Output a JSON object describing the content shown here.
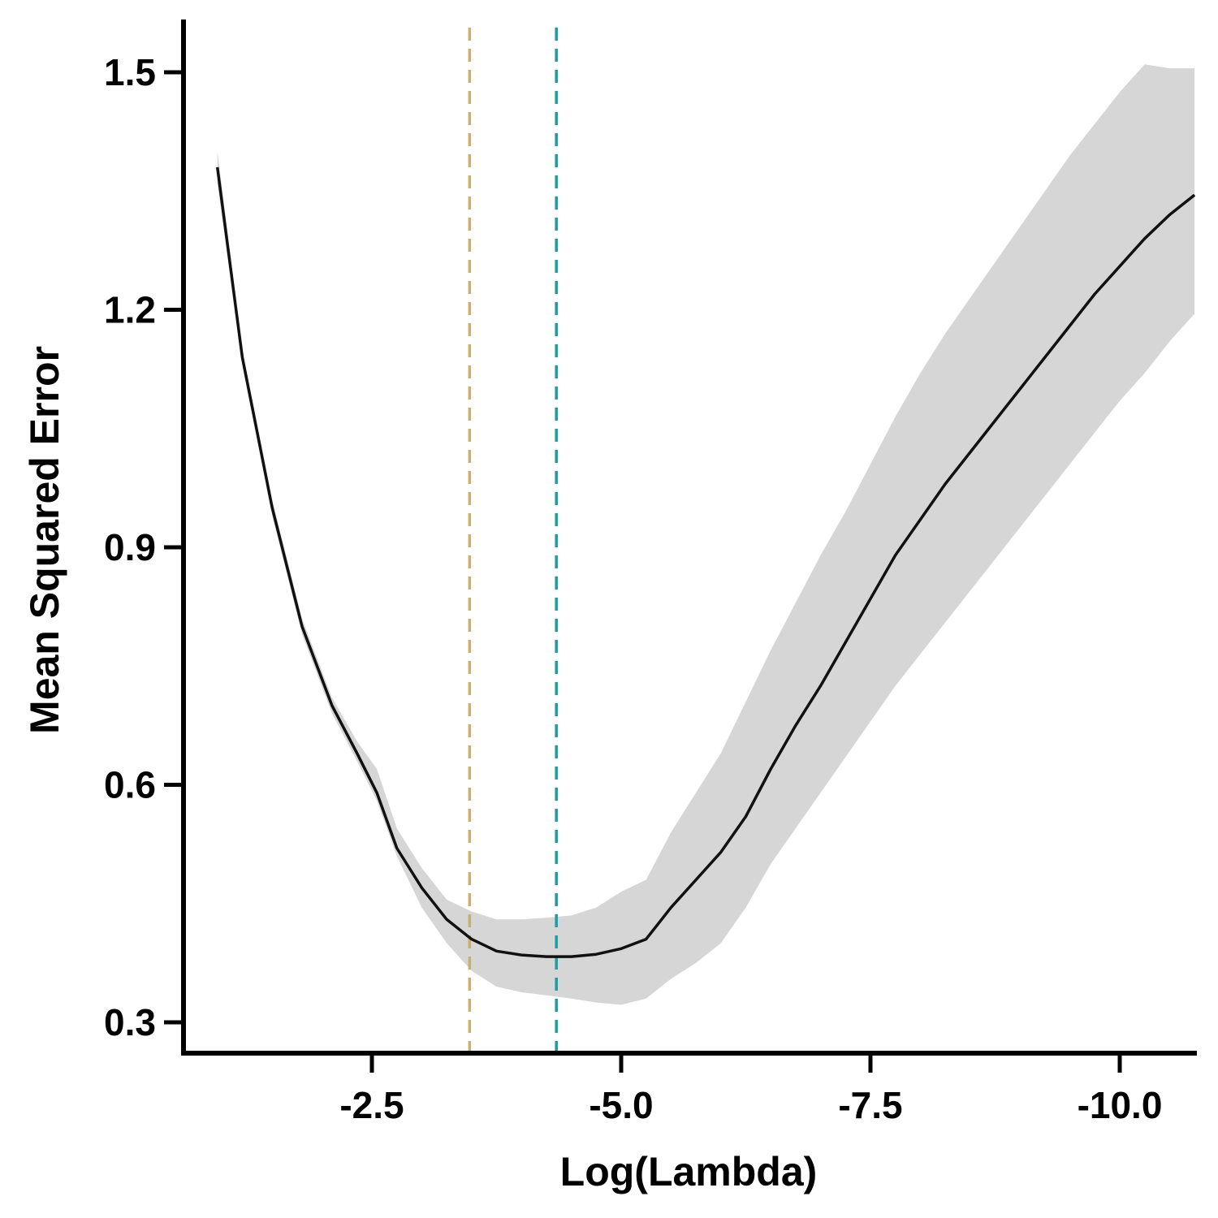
{
  "chart_data": {
    "type": "line",
    "title": "",
    "xlabel": "Log(Lambda)",
    "ylabel": "Mean Squared Error",
    "x_reversed": true,
    "xlim": [
      -1.6,
      -11.8
    ],
    "ylim": [
      0.27,
      1.57
    ],
    "x_ticks": [
      -2.5,
      -5.0,
      -7.5,
      -10.0
    ],
    "x_tick_labels": [
      "-2.5",
      "-5.0",
      "-7.5",
      "-10.0"
    ],
    "y_ticks": [
      0.3,
      0.6,
      0.9,
      1.2,
      1.5
    ],
    "y_tick_labels": [
      "0.3",
      "0.6",
      "0.9",
      "1.2",
      "1.5"
    ],
    "grid": false,
    "legend": "none",
    "series": [
      {
        "role": "mean",
        "color": "#111111",
        "points": [
          [
            -0.95,
            1.38
          ],
          [
            -1.2,
            1.14
          ],
          [
            -1.5,
            0.95
          ],
          [
            -1.8,
            0.8
          ],
          [
            -2.1,
            0.7
          ],
          [
            -2.35,
            0.64
          ],
          [
            -2.55,
            0.59
          ],
          [
            -2.75,
            0.52
          ],
          [
            -3.0,
            0.47
          ],
          [
            -3.25,
            0.43
          ],
          [
            -3.5,
            0.405
          ],
          [
            -3.75,
            0.39
          ],
          [
            -4.0,
            0.385
          ],
          [
            -4.25,
            0.383
          ],
          [
            -4.5,
            0.383
          ],
          [
            -4.75,
            0.386
          ],
          [
            -5.0,
            0.393
          ],
          [
            -5.25,
            0.405
          ],
          [
            -5.5,
            0.445
          ],
          [
            -5.75,
            0.48
          ],
          [
            -6.0,
            0.515
          ],
          [
            -6.25,
            0.56
          ],
          [
            -6.5,
            0.62
          ],
          [
            -6.75,
            0.675
          ],
          [
            -7.0,
            0.725
          ],
          [
            -7.25,
            0.78
          ],
          [
            -7.5,
            0.835
          ],
          [
            -7.75,
            0.89
          ],
          [
            -8.0,
            0.935
          ],
          [
            -8.25,
            0.98
          ],
          [
            -8.5,
            1.02
          ],
          [
            -8.75,
            1.06
          ],
          [
            -9.0,
            1.1
          ],
          [
            -9.25,
            1.14
          ],
          [
            -9.5,
            1.18
          ],
          [
            -9.75,
            1.22
          ],
          [
            -10.0,
            1.255
          ],
          [
            -10.25,
            1.29
          ],
          [
            -10.5,
            1.32
          ],
          [
            -10.75,
            1.345
          ]
        ]
      },
      {
        "role": "band",
        "color": "#d6d6d6",
        "upper": [
          [
            -0.95,
            1.4
          ],
          [
            -1.2,
            1.15
          ],
          [
            -1.5,
            0.96
          ],
          [
            -1.8,
            0.81
          ],
          [
            -2.1,
            0.71
          ],
          [
            -2.35,
            0.655
          ],
          [
            -2.55,
            0.62
          ],
          [
            -2.75,
            0.545
          ],
          [
            -3.0,
            0.495
          ],
          [
            -3.25,
            0.455
          ],
          [
            -3.5,
            0.44
          ],
          [
            -3.75,
            0.43
          ],
          [
            -4.0,
            0.43
          ],
          [
            -4.25,
            0.432
          ],
          [
            -4.5,
            0.435
          ],
          [
            -4.75,
            0.445
          ],
          [
            -5.0,
            0.465
          ],
          [
            -5.25,
            0.48
          ],
          [
            -5.5,
            0.54
          ],
          [
            -5.75,
            0.59
          ],
          [
            -6.0,
            0.64
          ],
          [
            -6.25,
            0.705
          ],
          [
            -6.5,
            0.77
          ],
          [
            -6.75,
            0.83
          ],
          [
            -7.0,
            0.89
          ],
          [
            -7.25,
            0.945
          ],
          [
            -7.5,
            1.005
          ],
          [
            -7.75,
            1.065
          ],
          [
            -8.0,
            1.12
          ],
          [
            -8.25,
            1.17
          ],
          [
            -8.5,
            1.215
          ],
          [
            -8.75,
            1.26
          ],
          [
            -9.0,
            1.305
          ],
          [
            -9.25,
            1.35
          ],
          [
            -9.5,
            1.395
          ],
          [
            -9.75,
            1.435
          ],
          [
            -10.0,
            1.475
          ],
          [
            -10.25,
            1.51
          ],
          [
            -10.5,
            1.505
          ],
          [
            -10.75,
            1.505
          ]
        ],
        "lower": [
          [
            -0.95,
            1.36
          ],
          [
            -1.2,
            1.13
          ],
          [
            -1.5,
            0.94
          ],
          [
            -1.8,
            0.79
          ],
          [
            -2.1,
            0.69
          ],
          [
            -2.35,
            0.63
          ],
          [
            -2.55,
            0.58
          ],
          [
            -2.75,
            0.51
          ],
          [
            -3.0,
            0.445
          ],
          [
            -3.25,
            0.4
          ],
          [
            -3.5,
            0.365
          ],
          [
            -3.75,
            0.345
          ],
          [
            -4.0,
            0.338
          ],
          [
            -4.25,
            0.334
          ],
          [
            -4.5,
            0.33
          ],
          [
            -4.75,
            0.325
          ],
          [
            -5.0,
            0.322
          ],
          [
            -5.25,
            0.33
          ],
          [
            -5.5,
            0.355
          ],
          [
            -5.75,
            0.375
          ],
          [
            -6.0,
            0.4
          ],
          [
            -6.25,
            0.445
          ],
          [
            -6.5,
            0.5
          ],
          [
            -6.75,
            0.545
          ],
          [
            -7.0,
            0.59
          ],
          [
            -7.25,
            0.635
          ],
          [
            -7.5,
            0.68
          ],
          [
            -7.75,
            0.725
          ],
          [
            -8.0,
            0.765
          ],
          [
            -8.25,
            0.805
          ],
          [
            -8.5,
            0.845
          ],
          [
            -8.75,
            0.885
          ],
          [
            -9.0,
            0.925
          ],
          [
            -9.25,
            0.965
          ],
          [
            -9.5,
            1.005
          ],
          [
            -9.75,
            1.045
          ],
          [
            -10.0,
            1.085
          ],
          [
            -10.25,
            1.12
          ],
          [
            -10.5,
            1.16
          ],
          [
            -10.75,
            1.195
          ]
        ]
      }
    ],
    "reference_lines": [
      {
        "axis": "x",
        "value": -3.48,
        "color": "#c8b070",
        "style": "dashed"
      },
      {
        "axis": "x",
        "value": -4.35,
        "color": "#1a9e9e",
        "style": "dashed"
      }
    ]
  }
}
